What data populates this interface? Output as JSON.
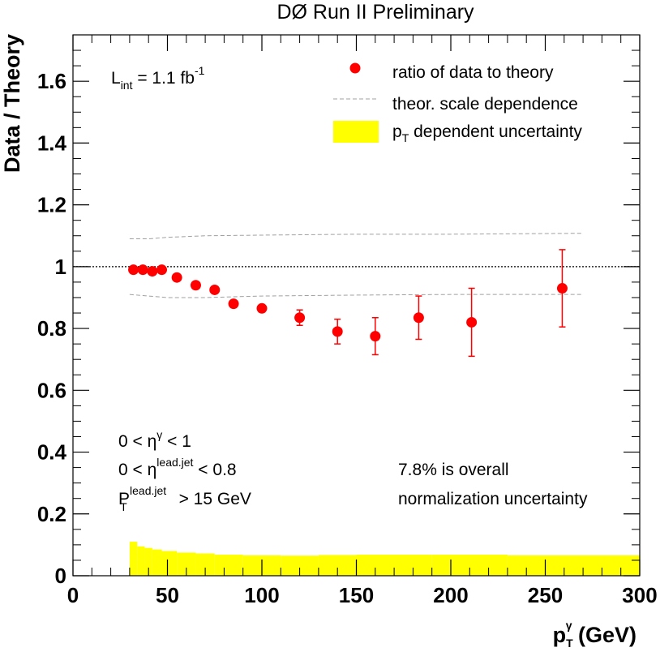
{
  "chart_data": {
    "type": "scatter",
    "title": "DØ Run II Preliminary",
    "xlabel": {
      "main": "p",
      "sub": "T",
      "sup": "γ",
      "tail": " (GeV)"
    },
    "ylabel": "Data / Theory",
    "xlim": [
      0,
      300
    ],
    "ylim": [
      0,
      1.75
    ],
    "x_ticks": [
      0,
      50,
      100,
      150,
      200,
      250,
      300
    ],
    "y_ticks": [
      0,
      0.2,
      0.4,
      0.6,
      0.8,
      1,
      1.2,
      1.4,
      1.6
    ],
    "x_tick_labels": [
      "0",
      "50",
      "100",
      "150",
      "200",
      "250",
      "300"
    ],
    "y_tick_labels": [
      "0",
      "0.2",
      "0.4",
      "0.6",
      "0.8",
      "1",
      "1.2",
      "1.4",
      "1.6"
    ],
    "reference_line": 1.0,
    "series": [
      {
        "name": "ratio of data to theory",
        "color": "#ff0000",
        "x": [
          32,
          37,
          42,
          47,
          55,
          65,
          75,
          85,
          100,
          120,
          140,
          160,
          183,
          211,
          259
        ],
        "y": [
          0.99,
          0.99,
          0.985,
          0.99,
          0.965,
          0.94,
          0.925,
          0.88,
          0.865,
          0.835,
          0.79,
          0.775,
          0.835,
          0.82,
          0.93
        ],
        "yerr": [
          0,
          0,
          0,
          0,
          0,
          0,
          0,
          0,
          0.005,
          0.025,
          0.04,
          0.06,
          0.07,
          0.11,
          0.125
        ]
      },
      {
        "name": "theor. scale dependence",
        "style": "dashed",
        "color": "#a0a0a0",
        "upper": {
          "x": [
            30,
            40,
            50,
            70,
            100,
            150,
            200,
            270
          ],
          "y": [
            1.09,
            1.09,
            1.095,
            1.1,
            1.102,
            1.105,
            1.105,
            1.108
          ]
        },
        "lower": {
          "x": [
            30,
            40,
            50,
            70,
            100,
            150,
            200,
            270
          ],
          "y": [
            0.91,
            0.905,
            0.9,
            0.9,
            0.905,
            0.908,
            0.91,
            0.91
          ]
        }
      },
      {
        "name": "p_T dependent uncertainty",
        "color": "#ffff00",
        "bins": [
          [
            30,
            34,
            0.11
          ],
          [
            34,
            38,
            0.095
          ],
          [
            38,
            42,
            0.09
          ],
          [
            42,
            47,
            0.085
          ],
          [
            47,
            55,
            0.08
          ],
          [
            55,
            65,
            0.075
          ],
          [
            65,
            75,
            0.072
          ],
          [
            75,
            90,
            0.068
          ],
          [
            90,
            110,
            0.066
          ],
          [
            110,
            130,
            0.065
          ],
          [
            130,
            150,
            0.067
          ],
          [
            150,
            190,
            0.068
          ],
          [
            190,
            230,
            0.068
          ],
          [
            230,
            300,
            0.066
          ]
        ]
      }
    ],
    "legend": {
      "placement": "top-right",
      "entries": [
        {
          "label": "ratio of data to theory"
        },
        {
          "label": "theor. scale dependence"
        },
        {
          "label_main": "p",
          "label_sub": "T",
          "label_tail": " dependent uncertainty"
        }
      ]
    },
    "annotations": {
      "lumi": {
        "main": "L",
        "sub": "int",
        "tail": " = 1.1 fb",
        "sup": "-1"
      },
      "cut1": {
        "pre": "0 < η",
        "sup": "γ",
        "post": " < 1"
      },
      "cut2": {
        "pre": "0 < η",
        "sup": "lead.jet",
        "post": " < 0.8"
      },
      "cut3": {
        "pre": "P",
        "sub": "T",
        "sup": "lead.jet",
        "post": " > 15 GeV"
      },
      "norm1": "7.8% is overall",
      "norm2": "normalization uncertainty"
    }
  }
}
